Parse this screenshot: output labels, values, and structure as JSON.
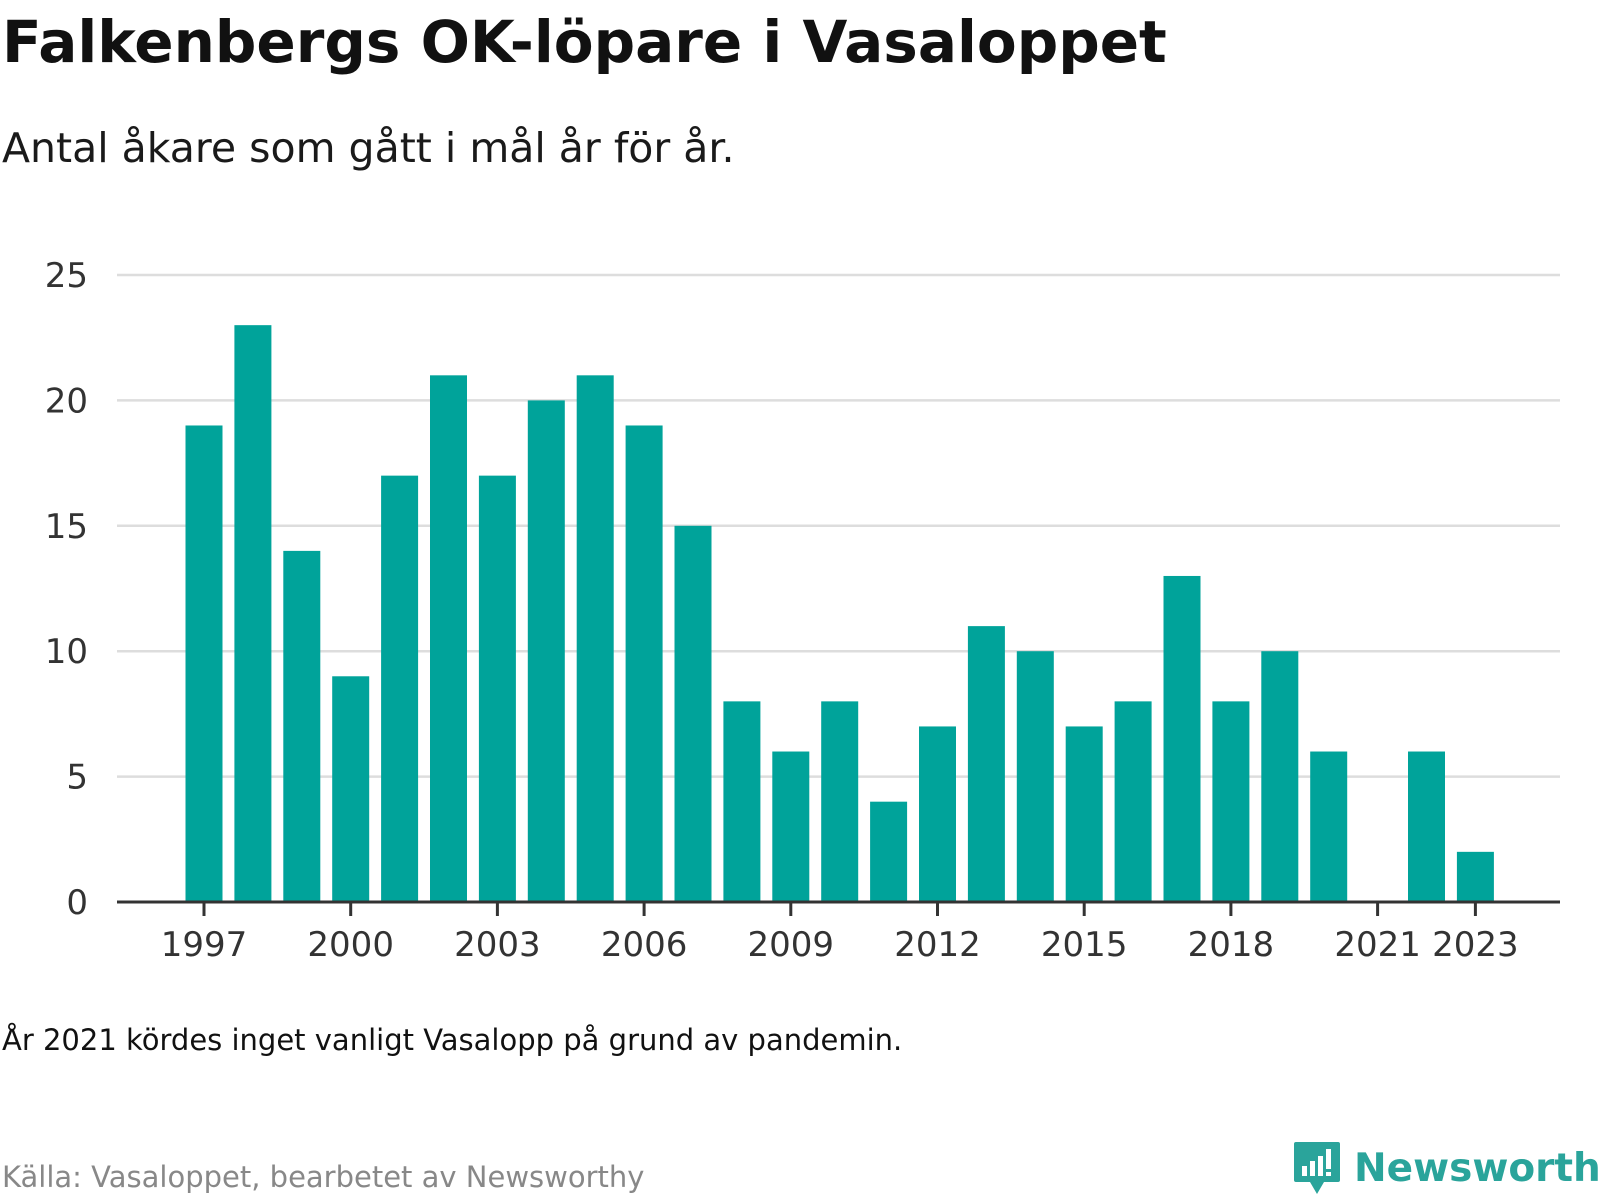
{
  "header": {
    "title": "Falkenbergs OK-löpare i Vasaloppet",
    "subtitle": "Antal åkare som gått i mål år för år."
  },
  "footer": {
    "note": "År 2021 kördes inget vanligt Vasalopp på grund av pandemin.",
    "source": "Källa: Vasaloppet, bearbetet av Newsworthy",
    "brand": "Newsworthy",
    "brand_icon": "newsworthy-bar-chart-speech-bubble-icon"
  },
  "colors": {
    "bar": "#00a39a",
    "grid": "#dddddd",
    "axis": "#333333",
    "brand": "#2aa49b"
  },
  "chart_data": {
    "type": "bar",
    "title": "Falkenbergs OK-löpare i Vasaloppet",
    "subtitle": "Antal åkare som gått i mål år för år.",
    "xlabel": "",
    "ylabel": "",
    "categories": [
      1997,
      1998,
      1999,
      2000,
      2001,
      2002,
      2003,
      2004,
      2005,
      2006,
      2007,
      2008,
      2009,
      2010,
      2011,
      2012,
      2013,
      2014,
      2015,
      2016,
      2017,
      2018,
      2019,
      2020,
      2021,
      2022,
      2023
    ],
    "values": [
      19,
      23,
      14,
      9,
      17,
      21,
      17,
      20,
      21,
      19,
      15,
      8,
      6,
      8,
      4,
      7,
      11,
      10,
      7,
      8,
      13,
      8,
      10,
      6,
      0,
      6,
      2
    ],
    "x_ticks": [
      "1997",
      "2000",
      "2003",
      "2006",
      "2009",
      "2012",
      "2015",
      "2018",
      "2021",
      "2023"
    ],
    "y_ticks": [
      "0",
      "5",
      "10",
      "15",
      "20",
      "25"
    ],
    "ylim": [
      0,
      25
    ],
    "grid": true,
    "legend": "none"
  }
}
